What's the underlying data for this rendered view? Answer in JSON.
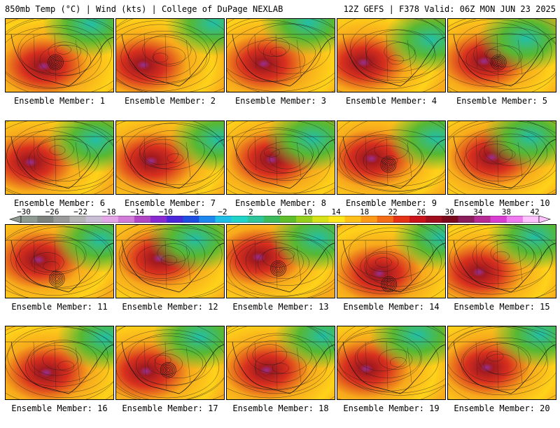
{
  "header": {
    "left": "850mb Temp (°C) | Wind (kts) | College of DuPage NEXLAB",
    "right": "12Z GEFS | F378 Valid: 06Z MON JUN 23 2025"
  },
  "members": [
    "Ensemble Member: 1",
    "Ensemble Member: 2",
    "Ensemble Member: 3",
    "Ensemble Member: 4",
    "Ensemble Member: 5",
    "Ensemble Member: 6",
    "Ensemble Member: 7",
    "Ensemble Member: 8",
    "Ensemble Member: 9",
    "Ensemble Member: 10",
    "Ensemble Member: 11",
    "Ensemble Member: 12",
    "Ensemble Member: 13",
    "Ensemble Member: 14",
    "Ensemble Member: 15",
    "Ensemble Member: 16",
    "Ensemble Member: 17",
    "Ensemble Member: 18",
    "Ensemble Member: 19",
    "Ensemble Member: 20"
  ],
  "colorbar": {
    "labels": [
      "−30",
      "−26",
      "−22",
      "−18",
      "−14",
      "−10",
      "−6",
      "−2",
      "2",
      "6",
      "10",
      "14",
      "18",
      "22",
      "26",
      "30",
      "34",
      "38",
      "42"
    ],
    "colors": [
      "#8f9a93",
      "#7d827f",
      "#9a9a9a",
      "#b5b5b5",
      "#c9bfd5",
      "#e6a7e8",
      "#d27bd8",
      "#b247c4",
      "#8a2bd2",
      "#4a27d8",
      "#1f4fe0",
      "#1f88ef",
      "#1fbfe8",
      "#22d3c8",
      "#2fc59a",
      "#3dba5c",
      "#5fbf2a",
      "#96cf1d",
      "#d6e11a",
      "#ffe51c",
      "#ffc01a",
      "#fd9a18",
      "#f36c17",
      "#e53317",
      "#c8141a",
      "#a00d1c",
      "#7a0a1c",
      "#8a1e5b",
      "#b52b93",
      "#d93dd2",
      "#f07af0",
      "#ffc2ff"
    ]
  },
  "fields": {
    "warm_core": "#d8301e",
    "hot_core": "#a31a1f",
    "orange": "#f7a91c",
    "yellow": "#ffd21a",
    "green": "#57b832",
    "teal": "#22bfa8",
    "magenta": "#9b2f8f"
  }
}
